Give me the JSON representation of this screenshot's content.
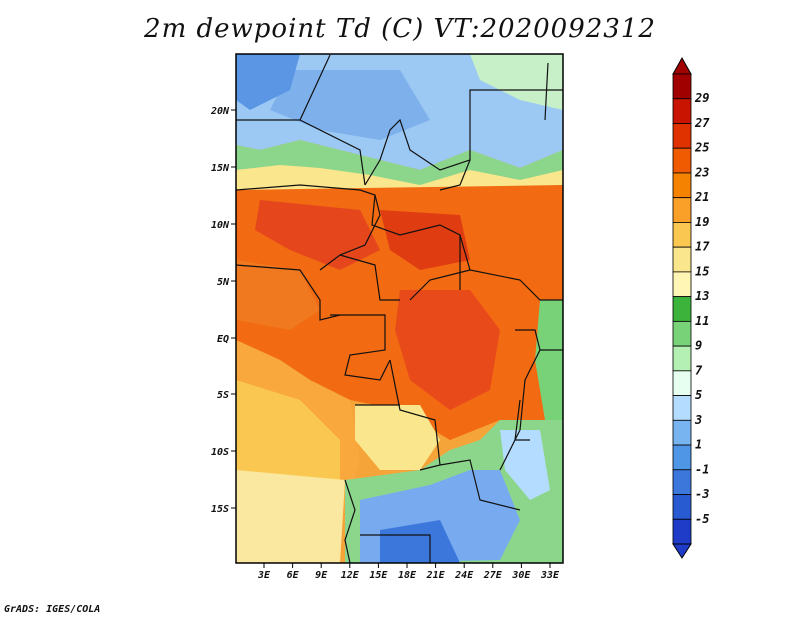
{
  "title": "2m dewpoint Td (C) VT:2020092312",
  "credit": "GrADS: IGES/COLA",
  "map": {
    "lat_labels": [
      "20N",
      "15N",
      "10N",
      "5N",
      "EQ",
      "5S",
      "10S",
      "15S"
    ],
    "lon_labels": [
      "3E",
      "6E",
      "9E",
      "12E",
      "15E",
      "18E",
      "21E",
      "24E",
      "27E",
      "30E",
      "33E"
    ]
  },
  "colorbar": {
    "labels": [
      "29",
      "27",
      "25",
      "23",
      "21",
      "19",
      "17",
      "15",
      "13",
      "11",
      "9",
      "7",
      "5",
      "3",
      "1",
      "-1",
      "-3",
      "-5"
    ],
    "colors": [
      "#a00000",
      "#c81400",
      "#e03200",
      "#f05a00",
      "#f58200",
      "#faa028",
      "#fac850",
      "#fae68c",
      "#fff5b4",
      "#3cb43c",
      "#78d278",
      "#b4f0b4",
      "#e6fff0",
      "#b4dcff",
      "#78b4f0",
      "#5096e6",
      "#3c78dc",
      "#285ad2",
      "#1e3cc8"
    ]
  },
  "colors": {
    "ocean_warm": "#f5a030",
    "sahara": "#8cc0f0",
    "south_dry": "#78aaf0"
  }
}
